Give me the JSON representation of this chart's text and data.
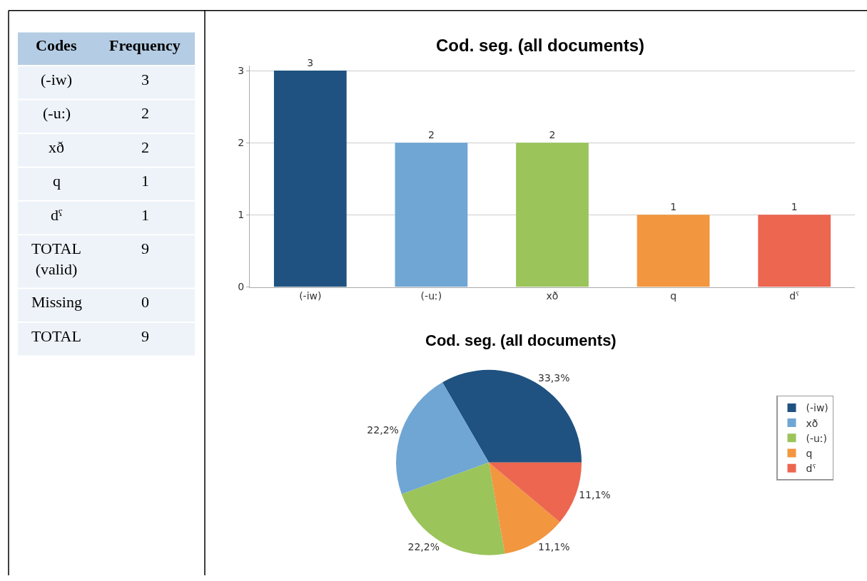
{
  "chart_data": [
    {
      "type": "other",
      "annotations": [
        "Codes",
        "Frequency",
        "(-iw)",
        "3",
        "(-u:)",
        "2",
        "xð",
        "2",
        "q",
        "1",
        "dˤ",
        "1",
        "TOTAL (valid)",
        "9",
        "Missing",
        "0",
        "TOTAL",
        "9"
      ]
    },
    {
      "type": "bar",
      "title": "Cod. seg. (all documents)",
      "categories": [
        "(-iw)",
        "(-uː)",
        "xð",
        "q",
        "dˤ"
      ],
      "values": [
        3,
        2,
        2,
        1,
        1
      ],
      "colors": [
        "#1f5280",
        "#6fa6d4",
        "#9bc45a",
        "#f29640",
        "#ec6650"
      ],
      "ylim": [
        0,
        3.07
      ],
      "yticks": [
        0,
        1,
        2,
        3
      ],
      "grid": "y",
      "data_labels": true
    },
    {
      "type": "pie",
      "title": "Cod. seg. (all documents)",
      "categories": [
        "(-iw)",
        "xð",
        "(-uː)",
        "q",
        "dˤ"
      ],
      "values": [
        33.3,
        22.2,
        22.2,
        11.1,
        11.1
      ],
      "value_labels": [
        "33,3%",
        "22,2%",
        "22,2%",
        "11,1%",
        "11,1%"
      ],
      "colors": [
        "#1f5280",
        "#6fa6d4",
        "#9bc45a",
        "#f29640",
        "#ec6650"
      ],
      "legend": "right"
    }
  ]
}
